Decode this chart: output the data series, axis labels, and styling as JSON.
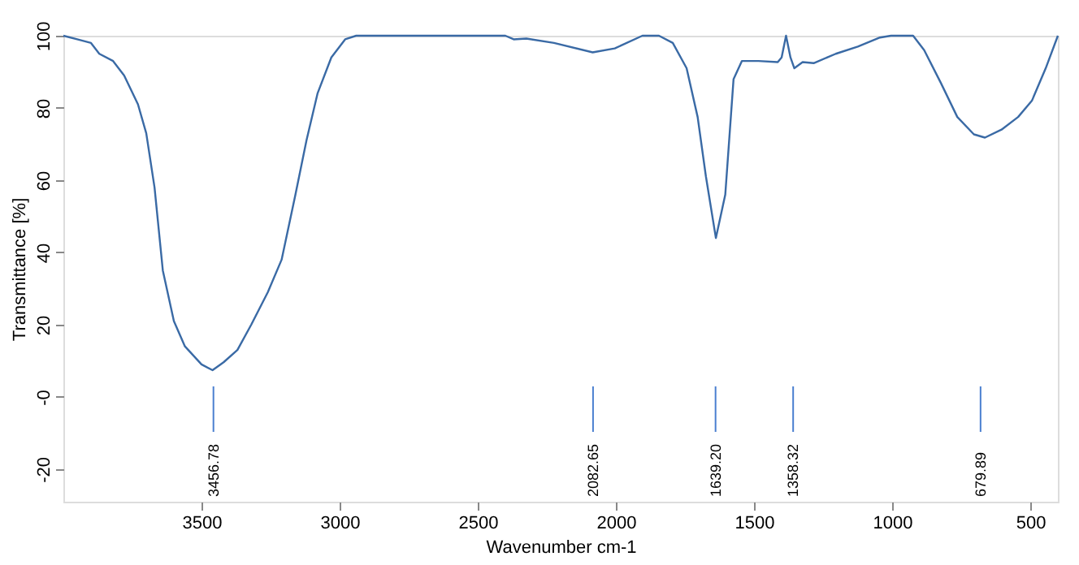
{
  "chart_data": {
    "type": "line",
    "xlabel": "Wavenumber cm-1",
    "ylabel": "Transmittance [%]",
    "xlim": [
      4000,
      400
    ],
    "ylim": [
      -29,
      100
    ],
    "xticks": [
      3500,
      3000,
      2500,
      2000,
      1500,
      1000,
      500
    ],
    "yticks": [
      {
        "value": -20,
        "label": "-20"
      },
      {
        "value": 0,
        "label": "-0"
      },
      20,
      40,
      60,
      80,
      100
    ],
    "grid": false,
    "marker": "none",
    "line_style": "solid",
    "series": [
      {
        "color": "#3a6aa5",
        "x": [
          4000,
          3950,
          3900,
          3870,
          3820,
          3780,
          3730,
          3700,
          3670,
          3640,
          3600,
          3560,
          3500,
          3460,
          3420,
          3370,
          3320,
          3260,
          3210,
          3160,
          3120,
          3080,
          3030,
          2980,
          2940,
          2600,
          2400,
          2370,
          2324,
          2224,
          2084,
          2004,
          1904,
          1844,
          1794,
          1744,
          1704,
          1674,
          1638,
          1604,
          1574,
          1544,
          1484,
          1414,
          1400,
          1384,
          1368,
          1354,
          1324,
          1284,
          1204,
          1124,
          1044,
          1004,
          924,
          884,
          824,
          764,
          704,
          664,
          604,
          544,
          494,
          444,
          400
        ],
        "values": [
          100,
          99,
          98,
          95,
          93,
          89,
          81,
          73,
          58,
          35,
          21,
          14,
          9,
          7.4,
          9.6,
          13,
          20,
          29,
          38,
          56,
          71,
          84,
          94,
          99,
          100,
          100,
          100,
          99,
          99.2,
          98,
          95.4,
          96.5,
          100,
          100,
          98,
          91,
          77.5,
          61,
          44,
          56,
          88,
          93,
          93,
          92.7,
          94,
          100,
          94,
          91,
          92.7,
          92.4,
          95,
          97,
          99.5,
          100,
          100,
          96,
          87,
          77.5,
          72.7,
          71.8,
          74,
          77.5,
          82,
          91,
          100
        ]
      }
    ],
    "ref_lines": [
      {
        "axis": "x",
        "value": 3456.78,
        "label": "3456.78",
        "color": "#4a7fd0"
      },
      {
        "axis": "x",
        "value": 2082.65,
        "label": "2082.65",
        "color": "#4a7fd0"
      },
      {
        "axis": "x",
        "value": 1639.2,
        "label": "1639.20",
        "color": "#4a7fd0"
      },
      {
        "axis": "x",
        "value": 1358.32,
        "label": "1358.32",
        "color": "#4a7fd0"
      },
      {
        "axis": "x",
        "value": 679.89,
        "label": "679.89",
        "color": "#4a7fd0"
      }
    ]
  }
}
